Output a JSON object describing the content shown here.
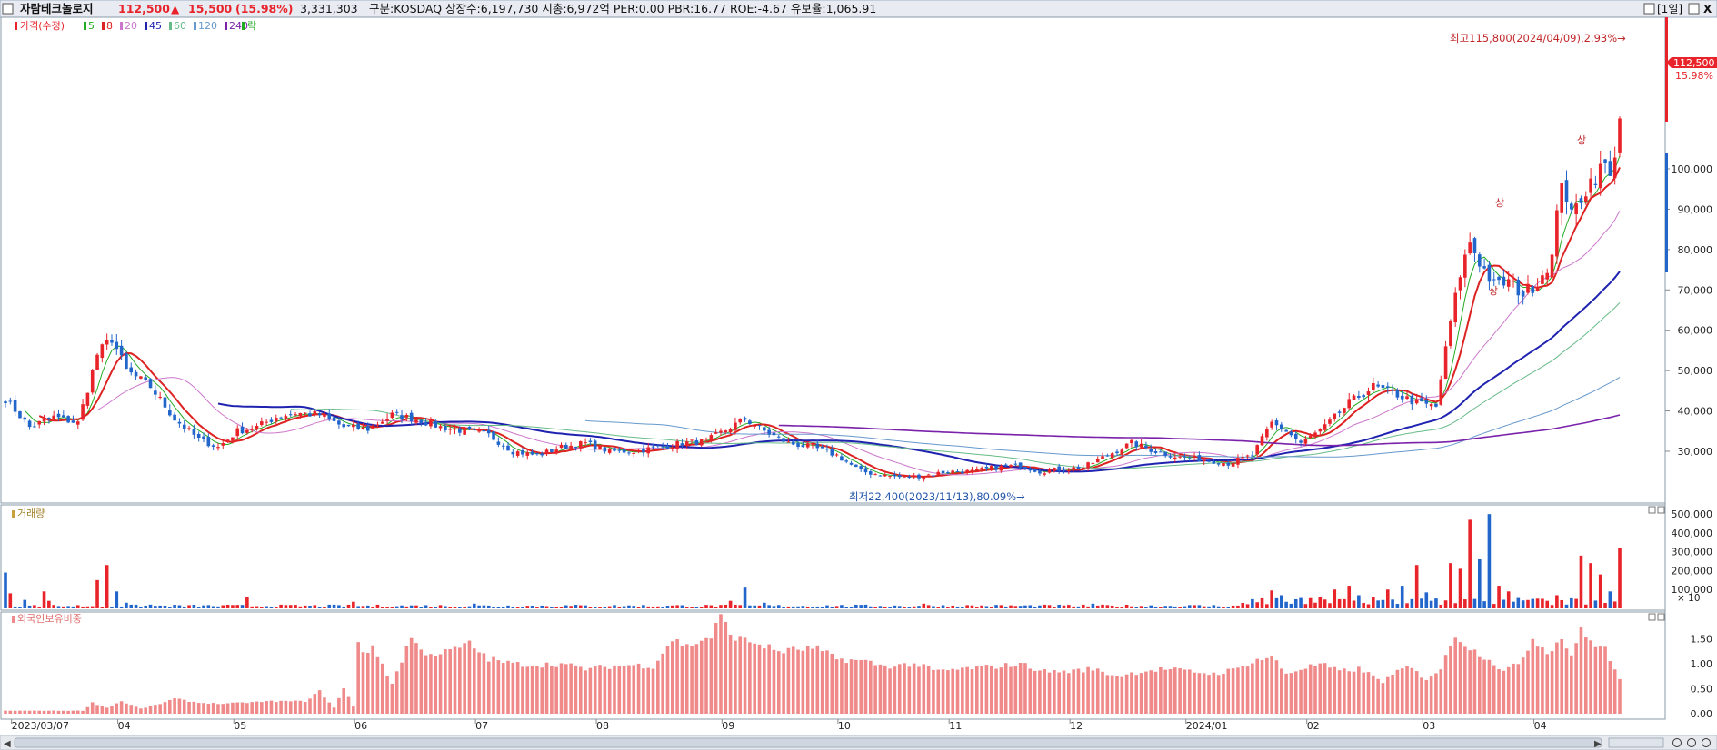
{
  "title_bar": {
    "stock_name": "자람테크놀로지",
    "price": "112,500",
    "change_arrow": "▲",
    "change": "15,500",
    "change_pct": "(15.98%)",
    "volume": "3,331,303",
    "info": "구분:KOSDAQ 상장수:6,197,730 시총:6,972억 PER:0.00 PBR:16.77 ROE:-4.67 유보율:1,065.91",
    "period": "[1일]",
    "close_label": "X"
  },
  "legend": {
    "price_label": "가격(수정)",
    "ma": [
      {
        "label": "5",
        "color": "#22aa22"
      },
      {
        "label": "8",
        "color": "#dd2222"
      },
      {
        "label": "20",
        "color": "#cc77cc"
      },
      {
        "label": "45",
        "color": "#1f23b0"
      },
      {
        "label": "60",
        "color": "#66bb88"
      },
      {
        "label": "120",
        "color": "#6699cc"
      },
      {
        "label": "240",
        "color": "#7a22aa"
      }
    ],
    "extra": "락"
  },
  "annotations": {
    "high": "최고115,800(2024/04/09),2.93%→",
    "low": "최저22,400(2023/11/13),80.09%→",
    "limit_up": "상"
  },
  "price_badge": {
    "value": "112,500",
    "pct": "15.98%"
  },
  "volume_panel": {
    "label": "거래량",
    "unit": "× 10"
  },
  "foreign_panel": {
    "label": "외국인보유비중"
  },
  "colors": {
    "up": "#e8232a",
    "down": "#2266cc",
    "foreign_bar": "#f08a8a",
    "grid_border": "#8a9aaa"
  },
  "chart_data": [
    {
      "type": "candlestick",
      "title": "",
      "ylim": [
        22400,
        115800
      ],
      "y_ticks": [
        "30,000",
        "40,000",
        "50,000",
        "60,000",
        "70,000",
        "80,000",
        "90,000",
        "100,000"
      ],
      "x_ticks": [
        "2023/03/07",
        "04",
        "05",
        "06",
        "07",
        "08",
        "09",
        "10",
        "11",
        "12",
        "2024/01",
        "02",
        "03",
        "04"
      ],
      "close_key": [
        [
          0,
          43000
        ],
        [
          5,
          36000
        ],
        [
          10,
          38500
        ],
        [
          15,
          37000
        ],
        [
          19,
          54000
        ],
        [
          22,
          58000
        ],
        [
          25,
          50000
        ],
        [
          30,
          46000
        ],
        [
          35,
          38000
        ],
        [
          40,
          33000
        ],
        [
          44,
          31000
        ],
        [
          48,
          35000
        ],
        [
          52,
          36000
        ],
        [
          56,
          38500
        ],
        [
          60,
          39500
        ],
        [
          65,
          39000
        ],
        [
          70,
          36000
        ],
        [
          75,
          35500
        ],
        [
          80,
          39000
        ],
        [
          85,
          38000
        ],
        [
          90,
          36000
        ],
        [
          95,
          35000
        ],
        [
          100,
          34000
        ],
        [
          105,
          30000
        ],
        [
          110,
          29000
        ],
        [
          115,
          31000
        ],
        [
          120,
          32000
        ],
        [
          125,
          30000
        ],
        [
          130,
          30000
        ],
        [
          135,
          31000
        ],
        [
          140,
          32000
        ],
        [
          145,
          32500
        ],
        [
          150,
          36000
        ],
        [
          153,
          38000
        ],
        [
          157,
          35000
        ],
        [
          162,
          32000
        ],
        [
          167,
          31000
        ],
        [
          172,
          29000
        ],
        [
          177,
          25000
        ],
        [
          182,
          24000
        ],
        [
          186,
          23500
        ],
        [
          190,
          24000
        ],
        [
          195,
          25000
        ],
        [
          200,
          25000
        ],
        [
          205,
          26000
        ],
        [
          210,
          26500
        ],
        [
          214,
          25000
        ],
        [
          218,
          25500
        ],
        [
          223,
          26000
        ],
        [
          228,
          29000
        ],
        [
          233,
          32000
        ],
        [
          238,
          30000
        ],
        [
          243,
          28500
        ],
        [
          248,
          28000
        ],
        [
          253,
          27000
        ],
        [
          258,
          29000
        ],
        [
          262,
          37000
        ],
        [
          265,
          35000
        ],
        [
          268,
          32000
        ],
        [
          273,
          36000
        ],
        [
          278,
          42000
        ],
        [
          283,
          46000
        ],
        [
          288,
          44000
        ],
        [
          292,
          42000
        ],
        [
          296,
          41000
        ],
        [
          299,
          62000
        ],
        [
          301,
          74000
        ],
        [
          303,
          82000
        ],
        [
          305,
          77000
        ],
        [
          308,
          71000
        ],
        [
          311,
          72000
        ],
        [
          314,
          69000
        ],
        [
          317,
          72000
        ],
        [
          320,
          78000
        ],
        [
          322,
          98000
        ],
        [
          324,
          88000
        ],
        [
          326,
          93000
        ],
        [
          328,
          97000
        ],
        [
          331,
          101000
        ],
        [
          332,
          97000
        ],
        [
          334,
          112500
        ]
      ],
      "moving_averages": [
        {
          "period": "5",
          "color": "#22aa22"
        },
        {
          "period": "8",
          "color": "#dd2222"
        },
        {
          "period": "20",
          "color": "#cc77cc"
        },
        {
          "period": "45",
          "color": "#1f23b0"
        },
        {
          "period": "60",
          "color": "#66bb88"
        },
        {
          "period": "120",
          "color": "#6699cc"
        },
        {
          "period": "240",
          "color": "#7a22aa"
        }
      ]
    },
    {
      "type": "bar",
      "title": "",
      "y_ticks": [
        "100,000",
        "200,000",
        "300,000",
        "400,000",
        "500,000"
      ],
      "ylim": [
        0,
        520000
      ],
      "spikes": [
        [
          0,
          190000
        ],
        [
          1,
          80000
        ],
        [
          4,
          45000
        ],
        [
          8,
          90000
        ],
        [
          9,
          40000
        ],
        [
          19,
          150000
        ],
        [
          21,
          230000
        ],
        [
          23,
          90000
        ],
        [
          25,
          30000
        ],
        [
          30,
          20000
        ],
        [
          50,
          60000
        ],
        [
          72,
          35000
        ],
        [
          97,
          25000
        ],
        [
          150,
          40000
        ],
        [
          153,
          110000
        ],
        [
          157,
          30000
        ],
        [
          190,
          25000
        ],
        [
          225,
          25000
        ],
        [
          262,
          95000
        ],
        [
          264,
          70000
        ],
        [
          268,
          55000
        ],
        [
          272,
          60000
        ],
        [
          275,
          100000
        ],
        [
          278,
          120000
        ],
        [
          280,
          70000
        ],
        [
          283,
          60000
        ],
        [
          286,
          100000
        ],
        [
          289,
          120000
        ],
        [
          292,
          230000
        ],
        [
          294,
          85000
        ],
        [
          299,
          240000
        ],
        [
          301,
          210000
        ],
        [
          303,
          470000
        ],
        [
          305,
          260000
        ],
        [
          307,
          500000
        ],
        [
          309,
          120000
        ],
        [
          311,
          90000
        ],
        [
          313,
          55000
        ],
        [
          316,
          50000
        ],
        [
          319,
          40000
        ],
        [
          321,
          70000
        ],
        [
          323,
          20000
        ],
        [
          326,
          280000
        ],
        [
          328,
          240000
        ],
        [
          330,
          180000
        ],
        [
          332,
          90000
        ],
        [
          334,
          320000
        ]
      ]
    },
    {
      "type": "bar",
      "title": "",
      "y_ticks": [
        "0.00",
        "0.50",
        "1.00",
        "1.50"
      ],
      "ylim": [
        0,
        2.0
      ],
      "keys": [
        [
          0,
          0.06
        ],
        [
          16,
          0.06
        ],
        [
          18,
          0.22
        ],
        [
          21,
          0.12
        ],
        [
          24,
          0.25
        ],
        [
          28,
          0.1
        ],
        [
          32,
          0.2
        ],
        [
          35,
          0.3
        ],
        [
          40,
          0.22
        ],
        [
          45,
          0.2
        ],
        [
          55,
          0.25
        ],
        [
          62,
          0.25
        ],
        [
          65,
          0.45
        ],
        [
          68,
          0.12
        ],
        [
          70,
          0.5
        ],
        [
          72,
          0.15
        ],
        [
          73,
          1.45
        ],
        [
          74,
          1.25
        ],
        [
          76,
          1.3
        ],
        [
          78,
          1.0
        ],
        [
          80,
          0.6
        ],
        [
          84,
          1.55
        ],
        [
          86,
          1.25
        ],
        [
          90,
          1.2
        ],
        [
          96,
          1.4
        ],
        [
          100,
          1.1
        ],
        [
          105,
          1.0
        ],
        [
          110,
          0.98
        ],
        [
          115,
          1.0
        ],
        [
          120,
          0.9
        ],
        [
          125,
          0.95
        ],
        [
          130,
          0.98
        ],
        [
          134,
          0.95
        ],
        [
          138,
          1.5
        ],
        [
          141,
          1.35
        ],
        [
          146,
          1.55
        ],
        [
          148,
          1.95
        ],
        [
          150,
          1.6
        ],
        [
          152,
          1.5
        ],
        [
          156,
          1.4
        ],
        [
          160,
          1.25
        ],
        [
          165,
          1.3
        ],
        [
          168,
          1.3
        ],
        [
          172,
          1.1
        ],
        [
          178,
          1.05
        ],
        [
          182,
          0.95
        ],
        [
          188,
          1.0
        ],
        [
          193,
          0.85
        ],
        [
          198,
          0.9
        ],
        [
          205,
          0.95
        ],
        [
          210,
          1.0
        ],
        [
          215,
          0.85
        ],
        [
          220,
          0.85
        ],
        [
          225,
          0.9
        ],
        [
          230,
          0.75
        ],
        [
          235,
          0.85
        ],
        [
          240,
          0.9
        ],
        [
          245,
          0.85
        ],
        [
          250,
          0.8
        ],
        [
          255,
          0.9
        ],
        [
          258,
          1.05
        ],
        [
          262,
          1.15
        ],
        [
          265,
          0.8
        ],
        [
          268,
          0.9
        ],
        [
          272,
          1.0
        ],
        [
          276,
          0.85
        ],
        [
          280,
          0.9
        ],
        [
          285,
          0.65
        ],
        [
          290,
          0.95
        ],
        [
          294,
          0.7
        ],
        [
          297,
          0.9
        ],
        [
          300,
          1.6
        ],
        [
          302,
          1.4
        ],
        [
          304,
          1.25
        ],
        [
          307,
          1.1
        ],
        [
          310,
          0.85
        ],
        [
          313,
          1.0
        ],
        [
          316,
          1.5
        ],
        [
          319,
          1.25
        ],
        [
          322,
          1.5
        ],
        [
          324,
          1.2
        ],
        [
          326,
          1.65
        ],
        [
          328,
          1.45
        ],
        [
          331,
          1.3
        ],
        [
          333,
          0.85
        ],
        [
          334,
          0.7
        ]
      ]
    }
  ]
}
